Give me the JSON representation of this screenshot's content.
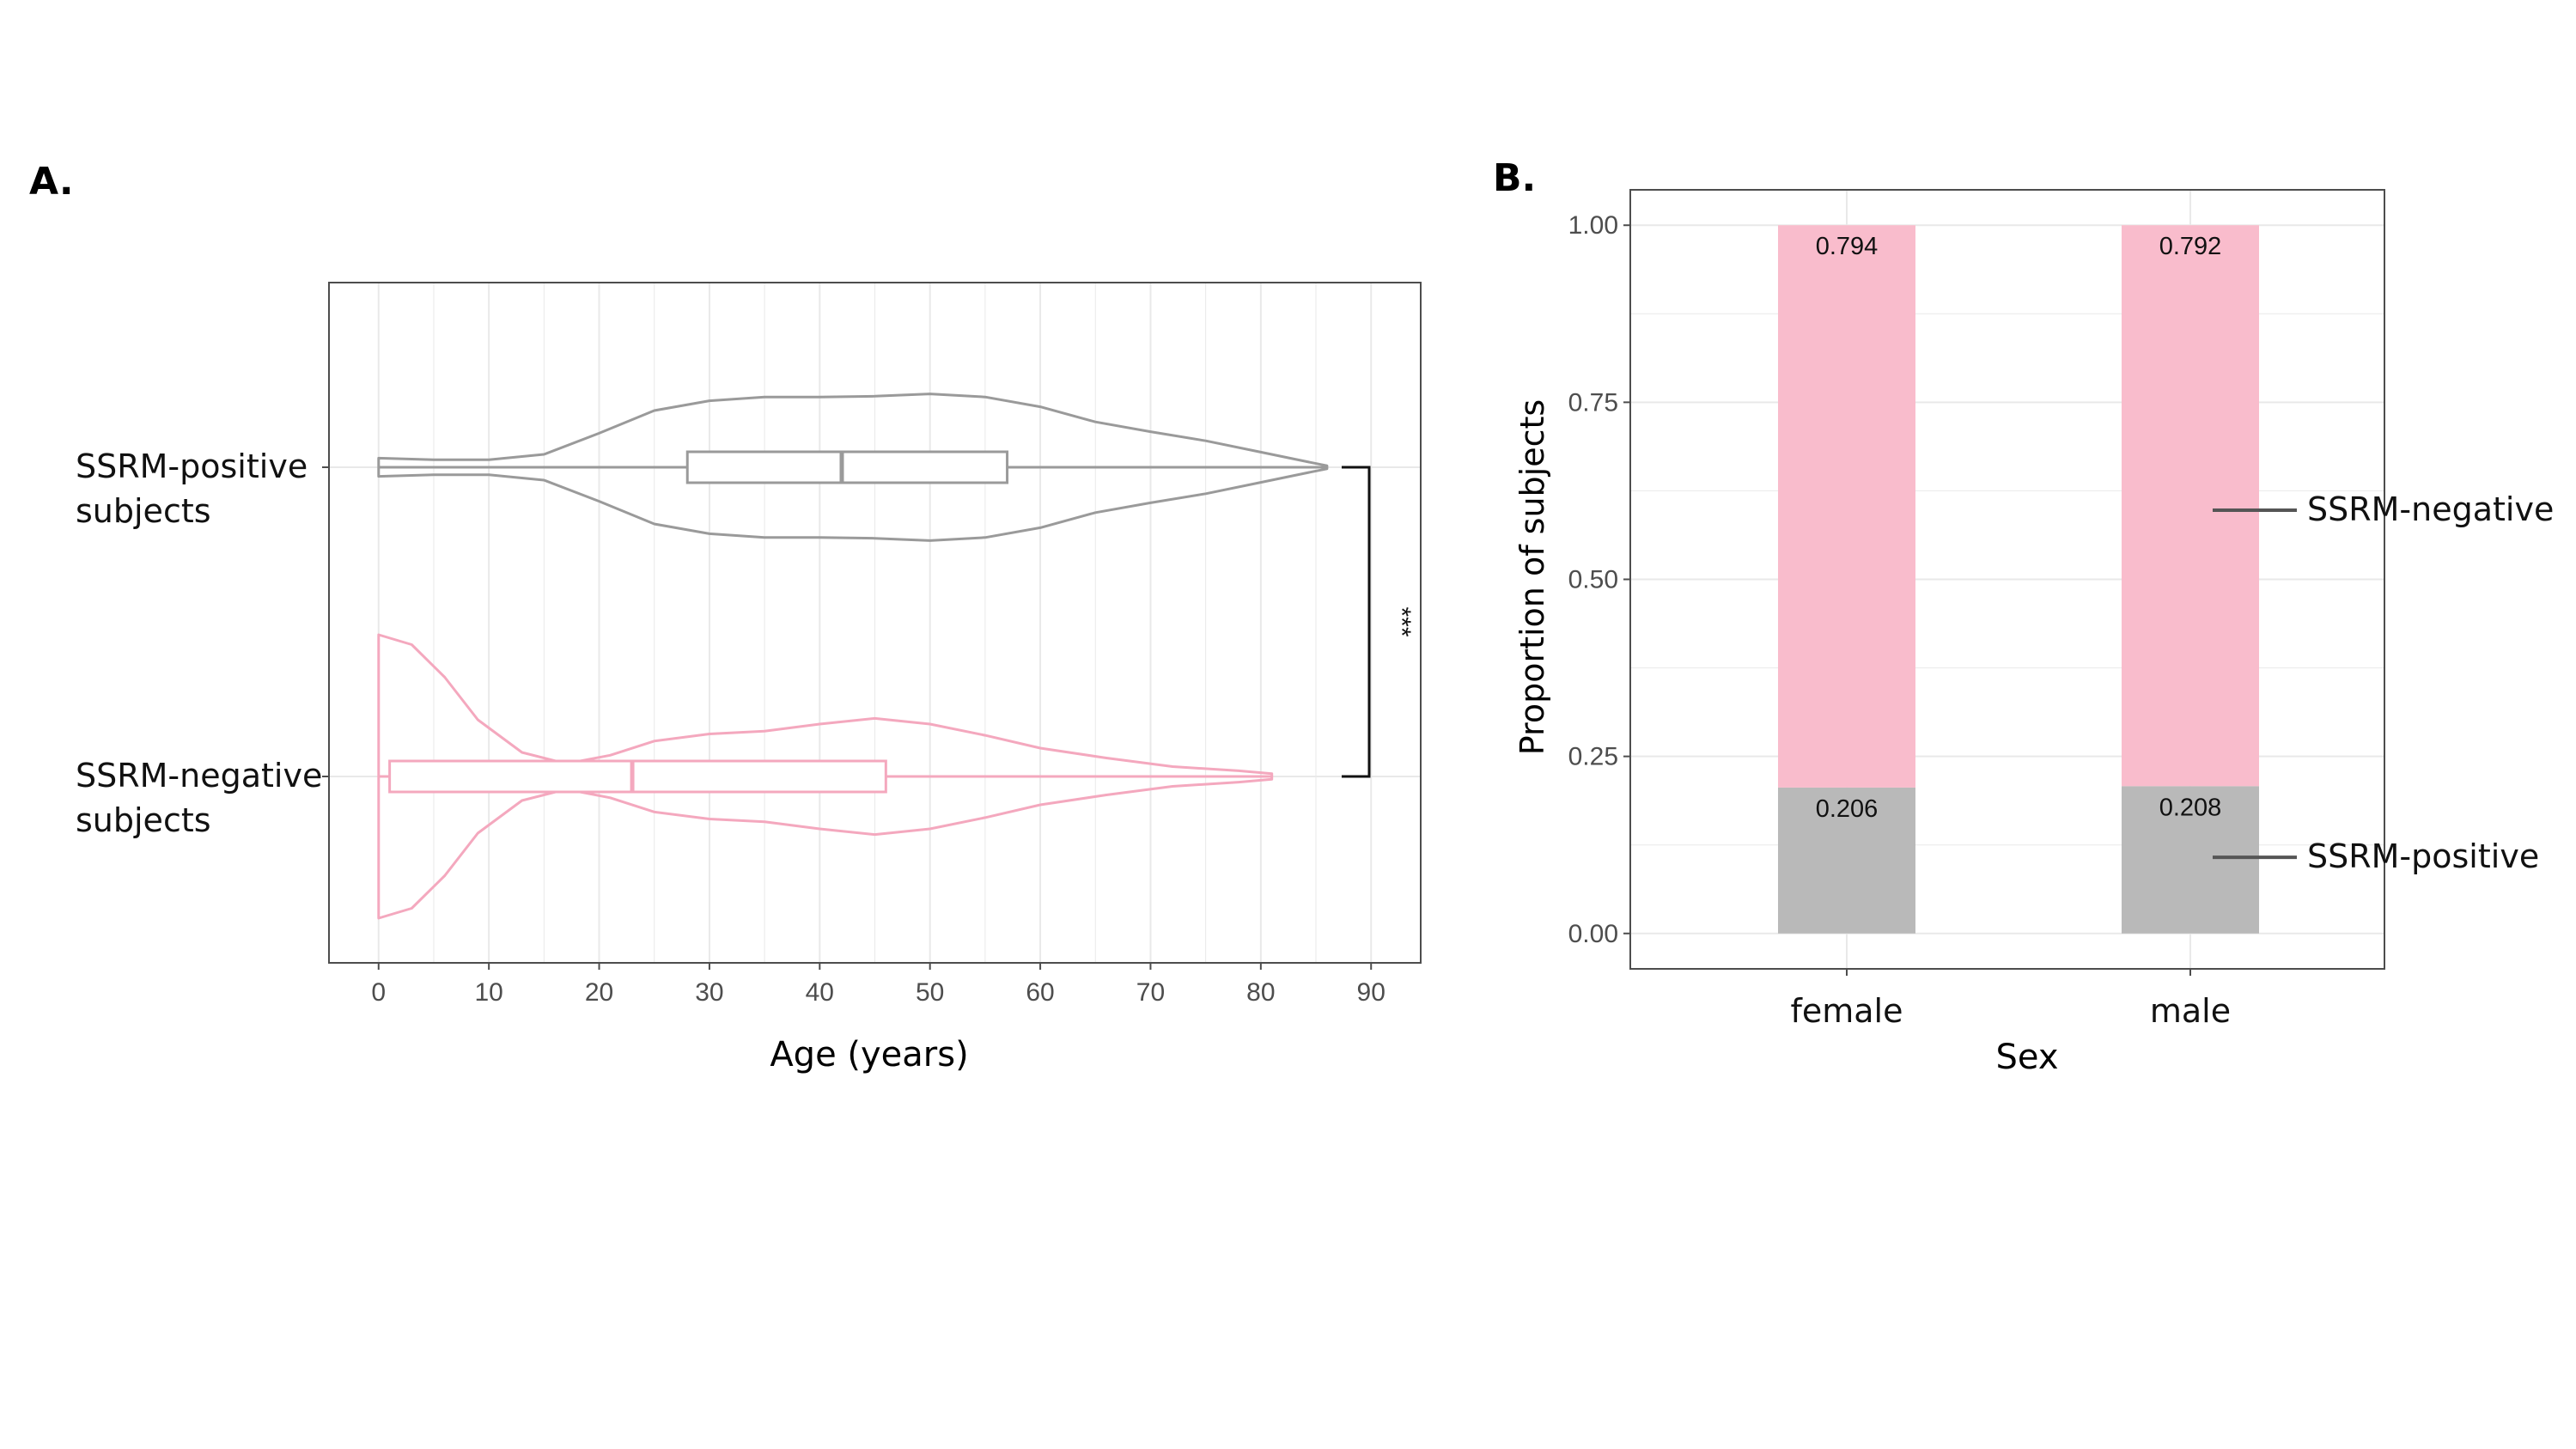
{
  "panels": {
    "a_label": "A.",
    "b_label": "B."
  },
  "colors": {
    "positive": "#9a9a9a",
    "negative": "#f4a8be",
    "negative_fill": "#f9bccc",
    "positive_fill": "#b9b9b9",
    "grid": "#e9e9e9",
    "frame": "#4d4d4d"
  },
  "chart_data": [
    {
      "type": "violin",
      "xlabel": "Age (years)",
      "xlim": [
        -4.5,
        94.5
      ],
      "xticks": [
        0,
        10,
        20,
        30,
        40,
        50,
        60,
        70,
        80,
        90
      ],
      "grid": true,
      "significance": "***",
      "groups": [
        {
          "label_line1": "SSRM-positive",
          "label_line2": "subjects",
          "color": "#9a9a9a",
          "box": {
            "q1": 28,
            "median": 42,
            "q3": 57
          },
          "range": [
            0,
            86
          ],
          "density_profile": [
            [
              0,
              0.12
            ],
            [
              5,
              0.1
            ],
            [
              10,
              0.1
            ],
            [
              15,
              0.17
            ],
            [
              20,
              0.45
            ],
            [
              25,
              0.75
            ],
            [
              30,
              0.88
            ],
            [
              35,
              0.93
            ],
            [
              40,
              0.93
            ],
            [
              45,
              0.94
            ],
            [
              50,
              0.97
            ],
            [
              55,
              0.93
            ],
            [
              60,
              0.8
            ],
            [
              65,
              0.6
            ],
            [
              70,
              0.47
            ],
            [
              75,
              0.35
            ],
            [
              80,
              0.2
            ],
            [
              84,
              0.08
            ],
            [
              86,
              0.02
            ]
          ]
        },
        {
          "label_line1": "SSRM-negative",
          "label_line2": "subjects",
          "color": "#f4a8be",
          "box": {
            "q1": 1,
            "median": 23,
            "q3": 46
          },
          "range": [
            0,
            81
          ],
          "density_profile": [
            [
              0,
              1.0
            ],
            [
              3,
              0.93
            ],
            [
              6,
              0.7
            ],
            [
              9,
              0.4
            ],
            [
              13,
              0.17
            ],
            [
              17,
              0.09
            ],
            [
              21,
              0.15
            ],
            [
              25,
              0.25
            ],
            [
              30,
              0.3
            ],
            [
              35,
              0.32
            ],
            [
              40,
              0.37
            ],
            [
              45,
              0.41
            ],
            [
              50,
              0.37
            ],
            [
              55,
              0.29
            ],
            [
              60,
              0.2
            ],
            [
              66,
              0.13
            ],
            [
              72,
              0.07
            ],
            [
              78,
              0.04
            ],
            [
              81,
              0.02
            ]
          ]
        }
      ]
    },
    {
      "type": "bar",
      "stacked": true,
      "xlabel": "Sex",
      "ylabel": "Proportion of subjects",
      "ylim": [
        -0.05,
        1.05
      ],
      "yticks": [
        "0.00",
        "0.25",
        "0.50",
        "0.75",
        "1.00"
      ],
      "categories": [
        "female",
        "male"
      ],
      "grid": true,
      "legend": "right",
      "series": [
        {
          "name": "SSRM-positive",
          "values": [
            0.206,
            0.208
          ],
          "labels": [
            "0.206",
            "0.208"
          ]
        },
        {
          "name": "SSRM-negative",
          "values": [
            0.794,
            0.792
          ],
          "labels": [
            "0.794",
            "0.792"
          ]
        }
      ]
    }
  ]
}
